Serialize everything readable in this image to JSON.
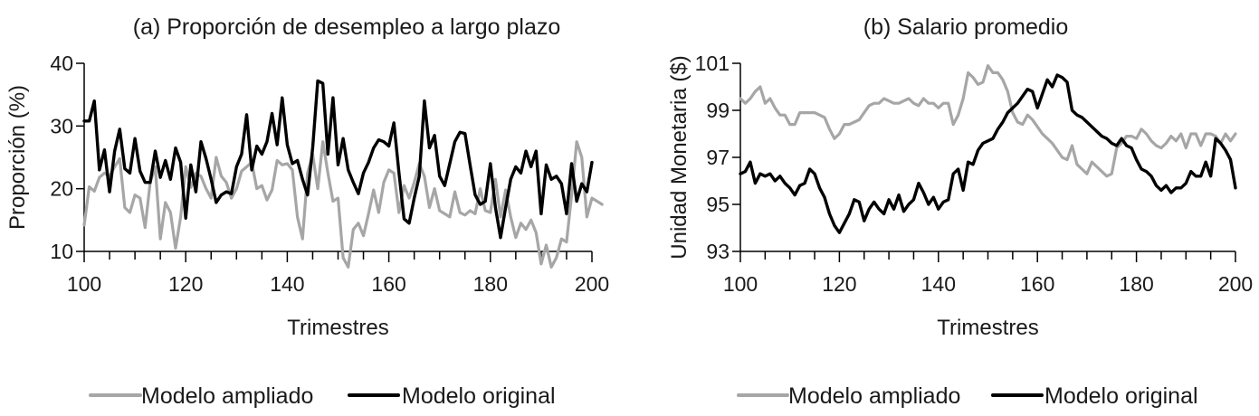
{
  "chart_data": [
    {
      "type": "line",
      "title": "(a) Proporción de desempleo a largo plazo",
      "xlabel": "Trimestres",
      "ylabel": "Proporción (%)",
      "xlim": [
        100,
        200
      ],
      "ylim": [
        10,
        40
      ],
      "xticks": [
        "100",
        "120",
        "140",
        "160",
        "180",
        "200"
      ],
      "yticks": [
        "10",
        "20",
        "30",
        "40"
      ],
      "x_start": 100,
      "x_step": 1,
      "legend": {
        "placement": "bottom"
      },
      "series": [
        {
          "name": "Modelo ampliado",
          "color": "#a6a6a6",
          "values": [
            14.2,
            20.3,
            19.6,
            21.8,
            22.5,
            22.0,
            23.5,
            24.8,
            17.0,
            16.2,
            19.0,
            18.5,
            13.8,
            21.0,
            23.5,
            12.0,
            17.8,
            16.2,
            10.5,
            15.5,
            23.5,
            20.2,
            22.5,
            22.0,
            20.0,
            18.5,
            25.0,
            22.0,
            21.0,
            18.5,
            20.0,
            22.8,
            23.5,
            24.2,
            20.0,
            20.5,
            18.2,
            19.8,
            24.5,
            23.8,
            24.0,
            23.0,
            15.5,
            12.0,
            22.5,
            25.5,
            20.0,
            27.5,
            22.5,
            18.0,
            18.5,
            9.0,
            7.5,
            13.5,
            14.5,
            12.5,
            16.0,
            19.8,
            16.2,
            21.0,
            23.0,
            22.5,
            16.2,
            20.5,
            18.5,
            21.0,
            24.0,
            22.0,
            17.0,
            20.0,
            16.5,
            16.0,
            15.5,
            19.5,
            16.2,
            15.8,
            16.5,
            16.0,
            20.0,
            16.5,
            16.2,
            21.5,
            15.5,
            19.8,
            15.5,
            12.2,
            14.5,
            13.5,
            15.0,
            13.0,
            8.0,
            11.0,
            7.5,
            9.0,
            12.0,
            11.5,
            19.0,
            27.5,
            25.0,
            15.5,
            18.5,
            18.0,
            17.5
          ]
        },
        {
          "name": "Modelo original",
          "color": "#000000",
          "values": [
            30.8,
            30.8,
            34.0,
            23.0,
            26.2,
            19.5,
            26.0,
            29.5,
            23.2,
            22.5,
            28.0,
            22.8,
            21.0,
            21.0,
            26.0,
            21.8,
            24.5,
            21.5,
            26.5,
            24.2,
            15.3,
            23.8,
            19.5,
            27.5,
            24.8,
            21.5,
            17.8,
            19.0,
            19.5,
            19.2,
            23.5,
            25.5,
            31.8,
            23.0,
            26.8,
            25.5,
            27.5,
            32.0,
            27.0,
            34.5,
            27.0,
            24.0,
            24.5,
            21.5,
            19.0,
            26.5,
            37.2,
            36.8,
            25.5,
            34.5,
            23.8,
            28.0,
            23.0,
            21.0,
            19.2,
            22.5,
            24.2,
            26.5,
            27.8,
            27.5,
            26.8,
            30.5,
            22.5,
            15.2,
            14.5,
            18.5,
            22.0,
            34.0,
            26.5,
            28.5,
            22.0,
            20.5,
            24.0,
            27.5,
            29.0,
            28.8,
            23.8,
            19.0,
            17.5,
            18.0,
            24.0,
            17.0,
            12.2,
            17.0,
            21.5,
            23.5,
            22.5,
            26.0,
            23.5,
            26.0,
            16.0,
            23.8,
            21.5,
            22.0,
            20.8,
            16.0,
            24.0,
            18.0,
            20.8,
            19.5,
            24.2
          ]
        }
      ]
    },
    {
      "type": "line",
      "title": "(b) Salario promedio",
      "xlabel": "Trimestres",
      "ylabel": "Unidad Monetaria ($)",
      "xlim": [
        100,
        200
      ],
      "ylim": [
        93,
        101
      ],
      "xticks": [
        "100",
        "120",
        "140",
        "160",
        "180",
        "200"
      ],
      "yticks": [
        "93",
        "95",
        "97",
        "99",
        "101"
      ],
      "x_start": 100,
      "x_step": 1,
      "legend": {
        "placement": "bottom"
      },
      "series": [
        {
          "name": "Modelo ampliado",
          "color": "#a6a6a6",
          "values": [
            99.5,
            99.3,
            99.5,
            99.8,
            100.0,
            99.3,
            99.5,
            99.1,
            98.8,
            98.8,
            98.4,
            98.4,
            98.9,
            98.9,
            98.9,
            98.9,
            98.8,
            98.7,
            98.2,
            97.8,
            98.0,
            98.4,
            98.4,
            98.5,
            98.6,
            98.9,
            99.2,
            99.3,
            99.3,
            99.5,
            99.4,
            99.3,
            99.3,
            99.4,
            99.5,
            99.3,
            99.2,
            99.5,
            99.3,
            99.3,
            99.1,
            99.3,
            99.3,
            98.4,
            98.8,
            99.5,
            100.6,
            100.4,
            100.1,
            100.2,
            100.9,
            100.6,
            100.6,
            100.3,
            99.8,
            98.9,
            98.5,
            98.4,
            98.8,
            98.6,
            98.3,
            98.0,
            97.8,
            97.6,
            97.3,
            97.0,
            96.9,
            97.5,
            96.7,
            96.5,
            96.3,
            96.8,
            96.6,
            96.4,
            96.2,
            96.3,
            97.4,
            97.6,
            97.9,
            97.9,
            97.8,
            98.2,
            98.0,
            97.7,
            97.5,
            97.4,
            97.6,
            97.9,
            97.7,
            98.0,
            97.4,
            98.0,
            98.0,
            97.5,
            98.0,
            98.0,
            97.9,
            97.6,
            98.0,
            97.7,
            98.0
          ]
        },
        {
          "name": "Modelo original",
          "color": "#000000",
          "values": [
            96.3,
            96.4,
            96.8,
            95.9,
            96.3,
            96.2,
            96.3,
            96.0,
            96.2,
            95.9,
            95.7,
            95.4,
            95.8,
            95.9,
            96.5,
            96.3,
            95.7,
            95.3,
            94.6,
            94.1,
            93.8,
            94.2,
            94.6,
            95.2,
            95.1,
            94.3,
            94.8,
            95.1,
            94.8,
            94.6,
            95.2,
            94.8,
            95.4,
            94.7,
            95.0,
            95.2,
            95.9,
            95.5,
            95.0,
            95.3,
            94.8,
            95.1,
            95.2,
            96.3,
            96.5,
            95.6,
            96.8,
            96.7,
            97.3,
            97.6,
            97.7,
            97.8,
            98.2,
            98.5,
            98.9,
            99.1,
            99.3,
            99.6,
            99.9,
            99.8,
            99.1,
            99.7,
            100.3,
            100.0,
            100.5,
            100.4,
            100.2,
            99.0,
            98.8,
            98.7,
            98.5,
            98.3,
            98.1,
            97.9,
            97.8,
            97.6,
            97.5,
            97.8,
            97.5,
            97.4,
            96.9,
            96.5,
            96.4,
            96.2,
            95.8,
            95.6,
            95.8,
            95.5,
            95.7,
            95.7,
            95.9,
            96.4,
            96.2,
            96.2,
            96.8,
            96.2,
            97.8,
            97.6,
            97.3,
            96.9,
            95.7
          ]
        }
      ]
    }
  ]
}
